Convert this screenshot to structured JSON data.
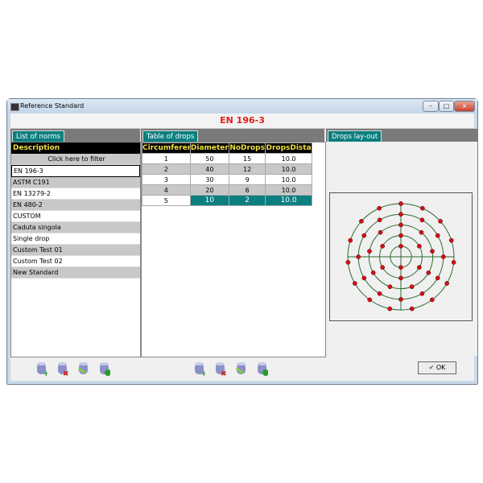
{
  "window": {
    "title": "Reference Standard",
    "minimize": "–",
    "maximize": "□",
    "close": "x"
  },
  "header": {
    "selected_norm": "EN 196-3"
  },
  "norms": {
    "tab": "List of norms",
    "column": "Description",
    "filter": "Click here to filter",
    "items": [
      "EN 196-3",
      "ASTM C191",
      "EN 13279-2",
      "EN 480-2",
      "CUSTOM",
      "Caduta singola",
      "Single drop",
      "Custom Test 01",
      "Custom Test 02",
      "New Standard"
    ],
    "selected": "EN 196-3"
  },
  "drops": {
    "tab": "Table of drops",
    "columns": [
      "Circumferer",
      "Diameter",
      "NoDrops",
      "DropsDista"
    ],
    "rows": [
      [
        "1",
        "50",
        "15",
        "10.0"
      ],
      [
        "2",
        "40",
        "12",
        "10.0"
      ],
      [
        "3",
        "30",
        "9",
        "10.0"
      ],
      [
        "4",
        "20",
        "6",
        "10.0"
      ],
      [
        "5",
        "10",
        "2",
        "10.0"
      ]
    ],
    "selected_row": 5
  },
  "layout": {
    "tab": "Drops lay-out",
    "ring_color": "#2e6b2e",
    "drop_color": "#d0101a"
  },
  "toolbar_icons": [
    "database-add-icon",
    "database-delete-icon",
    "database-edit-icon",
    "database-confirm-icon"
  ],
  "ok_button": {
    "label": "OK"
  }
}
